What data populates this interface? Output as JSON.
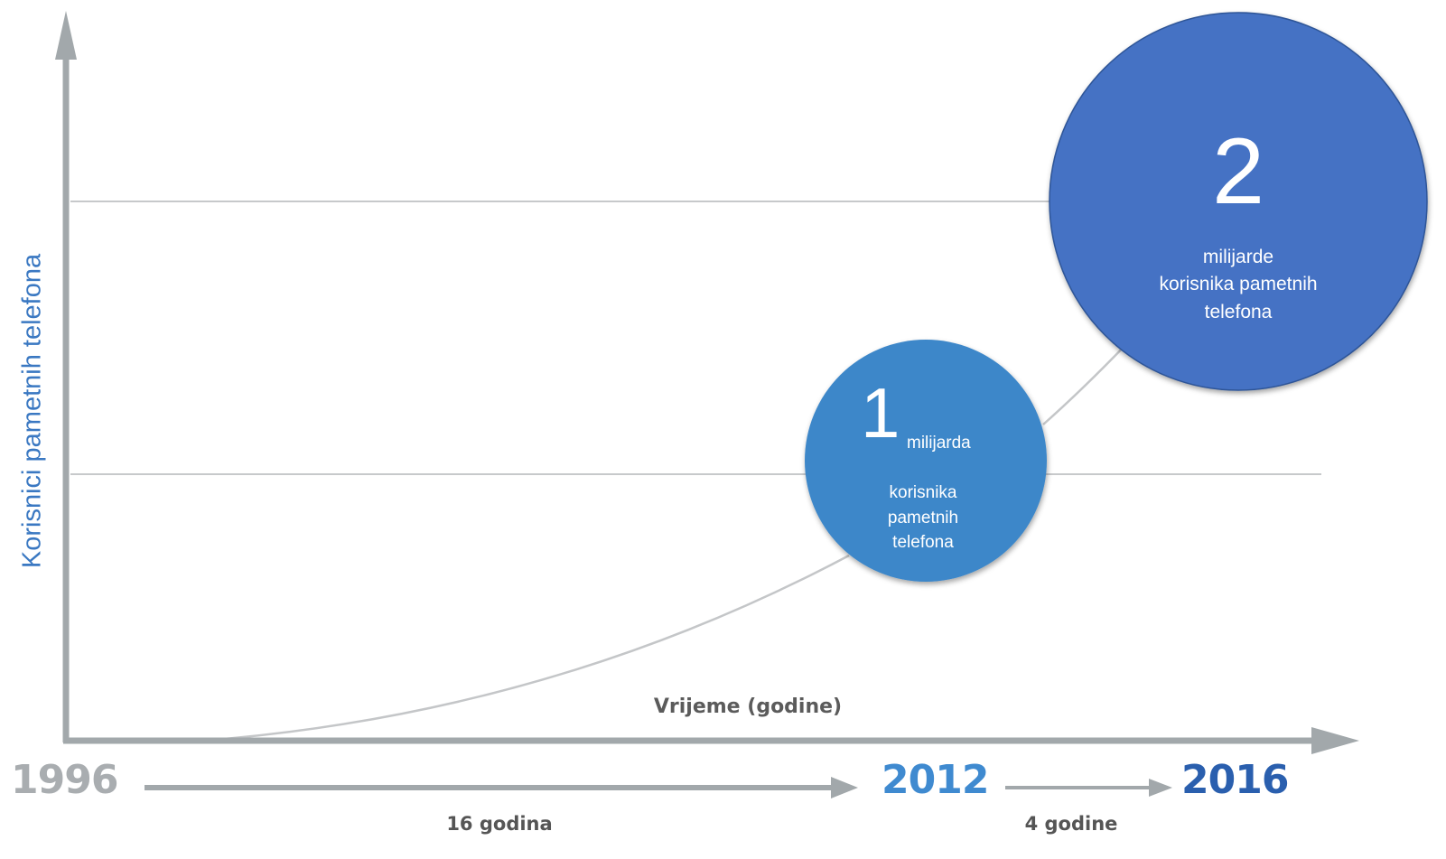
{
  "chart_data": {
    "type": "line",
    "ylabel": "Korisnici pametnih telefona",
    "xlabel": "Vrijeme (godine)",
    "x": [
      1996,
      2012,
      2016
    ],
    "series": [
      {
        "values": [
          0,
          1,
          2
        ]
      }
    ],
    "gridlines_y": [
      1,
      2
    ],
    "years": [
      "1996",
      "2012",
      "2016"
    ],
    "periods": [
      "16 godina",
      "4 godine"
    ],
    "bubbles": [
      {
        "year": 2012,
        "number": "1",
        "unit": "milijarda",
        "desc": [
          "korisnika",
          "pametnih",
          "telefona"
        ]
      },
      {
        "year": 2016,
        "number": "2",
        "desc": [
          "milijarde",
          "korisnika pametnih",
          "telefona"
        ]
      }
    ]
  },
  "colors": {
    "axis": "#a2a8ab",
    "gridline": "#c7c9cb",
    "curve": "#c4c6c8",
    "bubble_2012": "#3d87c9",
    "bubble_2016": "#4472c4",
    "ylabel": "#3a78c2",
    "year_1996": "#a9adb0",
    "year_2012": "#3f8ad0",
    "year_2016": "#2a5fae"
  }
}
